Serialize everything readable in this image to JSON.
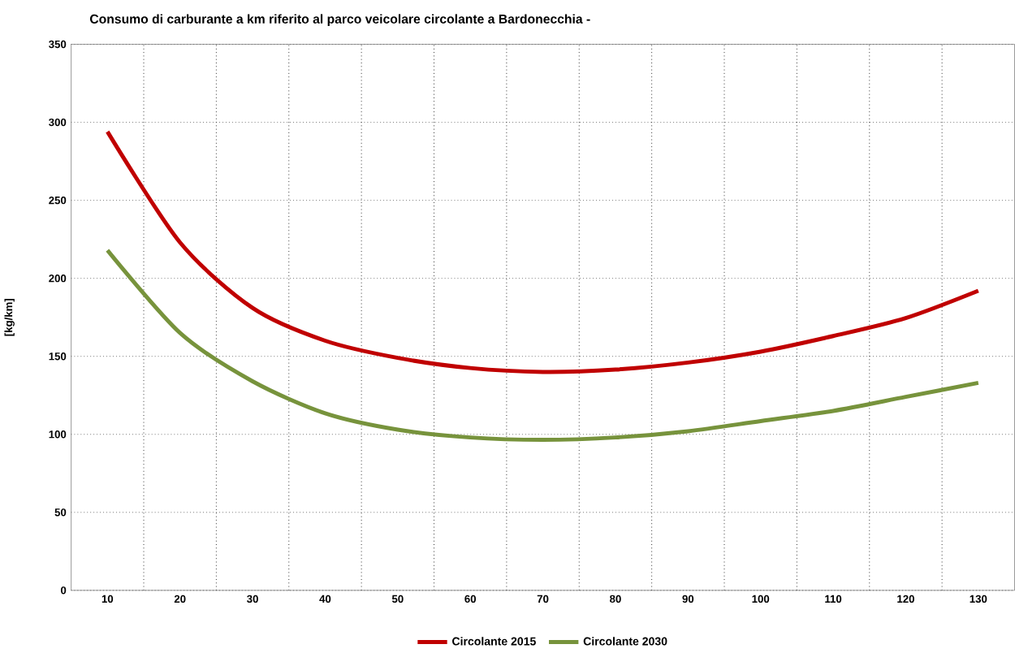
{
  "chart_data": {
    "type": "line",
    "title": "Consumo di carburante a km riferito al parco veicolare circolante a Bardonecchia -",
    "ylabel": "[kg/km]",
    "categories": [
      "10",
      "20",
      "30",
      "40",
      "50",
      "60",
      "70",
      "80",
      "90",
      "100",
      "110",
      "120",
      "130"
    ],
    "series": [
      {
        "name": "Circolante 2015",
        "color": "#c00000",
        "values": [
          294,
          223,
          181,
          160,
          149,
          142.5,
          140,
          141.5,
          146,
          153,
          163,
          174.5,
          192
        ]
      },
      {
        "name": "Circolante 2030",
        "color": "#77933c",
        "values": [
          218,
          165,
          134,
          113.5,
          103,
          98,
          96.5,
          98,
          102,
          108.5,
          115,
          124,
          133
        ]
      }
    ],
    "ylim": [
      0,
      350
    ],
    "yticks": [
      0,
      50,
      100,
      150,
      200,
      250,
      300,
      350
    ],
    "grid": true,
    "legend": "bottom",
    "marker": "none",
    "line_style": "solid"
  }
}
